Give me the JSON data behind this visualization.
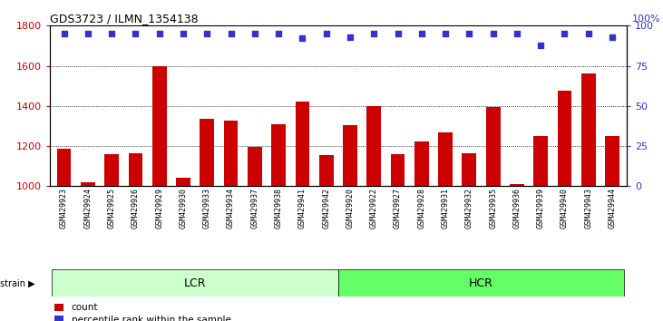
{
  "title": "GDS3723 / ILMN_1354138",
  "categories": [
    "GSM429923",
    "GSM429924",
    "GSM429925",
    "GSM429926",
    "GSM429929",
    "GSM429930",
    "GSM429933",
    "GSM429934",
    "GSM429937",
    "GSM429938",
    "GSM429941",
    "GSM429942",
    "GSM429920",
    "GSM429922",
    "GSM429927",
    "GSM429928",
    "GSM429931",
    "GSM429932",
    "GSM429935",
    "GSM429936",
    "GSM429939",
    "GSM429940",
    "GSM429943",
    "GSM429944"
  ],
  "values": [
    1185,
    1020,
    1160,
    1165,
    1600,
    1040,
    1335,
    1325,
    1195,
    1310,
    1420,
    1155,
    1305,
    1400,
    1160,
    1225,
    1270,
    1165,
    1395,
    1010,
    1250,
    1475,
    1560,
    1250
  ],
  "percentile_values": [
    95,
    95,
    95,
    95,
    95,
    95,
    95,
    95,
    95,
    95,
    92,
    95,
    93,
    95,
    95,
    95,
    95,
    95,
    95,
    95,
    88,
    95,
    95,
    93
  ],
  "lcr_count": 12,
  "hcr_count": 12,
  "bar_color": "#cc0000",
  "dot_color": "#3333cc",
  "ylim_left": [
    1000,
    1800
  ],
  "ylim_right": [
    0,
    100
  ],
  "yticks_left": [
    1000,
    1200,
    1400,
    1600,
    1800
  ],
  "yticks_right": [
    0,
    25,
    50,
    75,
    100
  ],
  "lcr_label": "LCR",
  "hcr_label": "HCR",
  "strain_label": "strain",
  "legend_count": "count",
  "legend_pct": "percentile rank within the sample",
  "lcr_color": "#ccffcc",
  "hcr_color": "#66ff66",
  "plot_bg": "#f0f0f0"
}
